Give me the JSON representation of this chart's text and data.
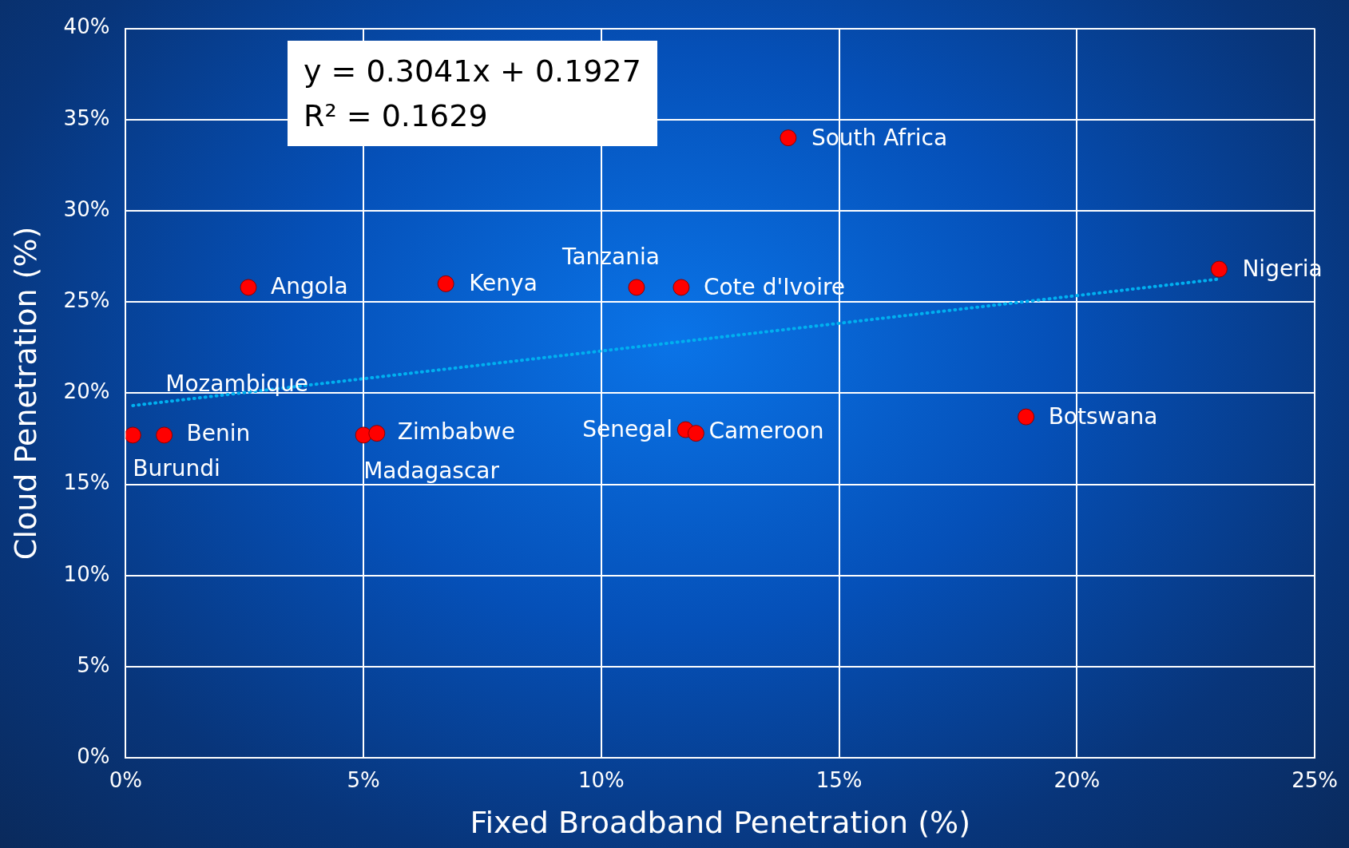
{
  "chart_data": {
    "type": "scatter",
    "xlabel": "Fixed Broadband Penetration (%)",
    "ylabel": "Cloud Penetration (%)",
    "xlim": [
      0,
      25
    ],
    "xticks": [
      {
        "value": 0,
        "label": "0%"
      },
      {
        "value": 5,
        "label": "5%"
      },
      {
        "value": 10,
        "label": "10%"
      },
      {
        "value": 15,
        "label": "15%"
      },
      {
        "value": 20,
        "label": "20%"
      },
      {
        "value": 25,
        "label": "25%"
      }
    ],
    "ylim": [
      0,
      40
    ],
    "yticks": [
      {
        "value": 0,
        "label": "0%"
      },
      {
        "value": 5,
        "label": "5%"
      },
      {
        "value": 10,
        "label": "10%"
      },
      {
        "value": 15,
        "label": "15%"
      },
      {
        "value": 20,
        "label": "20%"
      },
      {
        "value": 25,
        "label": "25%"
      },
      {
        "value": 30,
        "label": "30%"
      },
      {
        "value": 35,
        "label": "35%"
      },
      {
        "value": 40,
        "label": "40%"
      }
    ],
    "grid": true,
    "legend": false,
    "marker": "circle",
    "series": [
      {
        "color": "#ff0000",
        "x": [
          0.15,
          0.81,
          2.58,
          6.73,
          5.0,
          5.28,
          10.74,
          11.68,
          13.93,
          11.77,
          11.99,
          18.93,
          22.99
        ],
        "values": [
          17.7,
          17.7,
          25.8,
          26.0,
          17.7,
          17.8,
          25.8,
          25.8,
          34.0,
          18.0,
          17.8,
          18.7,
          26.8
        ]
      },
      {
        "type": "line",
        "color": "#00b0f0",
        "line_style": "dotted",
        "marker": "none",
        "x": [
          0.15,
          22.99
        ],
        "values": [
          19.32,
          26.26
        ]
      }
    ],
    "annotations": [
      "y = 0.3041x + 0.1927",
      "R² = 0.1629",
      {
        "text": "South Africa",
        "x": 13.93,
        "y": 34.0
      },
      {
        "text": "Nigeria",
        "x": 22.99,
        "y": 26.8
      },
      {
        "text": "Angola",
        "x": 2.58,
        "y": 25.8
      },
      {
        "text": "Kenya",
        "x": 6.73,
        "y": 26.0
      },
      {
        "text": "Tanzania",
        "x": 10.74,
        "y": 25.8
      },
      {
        "text": "Cote d'Ivoire",
        "x": 11.68,
        "y": 25.8
      },
      {
        "text": "Mozambique",
        "x": 0.15,
        "y": 17.7
      },
      {
        "text": "Benin",
        "x": 0.81,
        "y": 17.7
      },
      {
        "text": "Burundi",
        "x": 0.15,
        "y": 17.7
      },
      {
        "text": "Zimbabwe",
        "x": 5.28,
        "y": 17.8
      },
      {
        "text": "Madagascar",
        "x": 5.0,
        "y": 17.7
      },
      {
        "text": "Senegal",
        "x": 11.77,
        "y": 18.0
      },
      {
        "text": "Cameroon",
        "x": 11.99,
        "y": 17.8
      },
      {
        "text": "Botswana",
        "x": 18.93,
        "y": 18.7
      }
    ]
  }
}
